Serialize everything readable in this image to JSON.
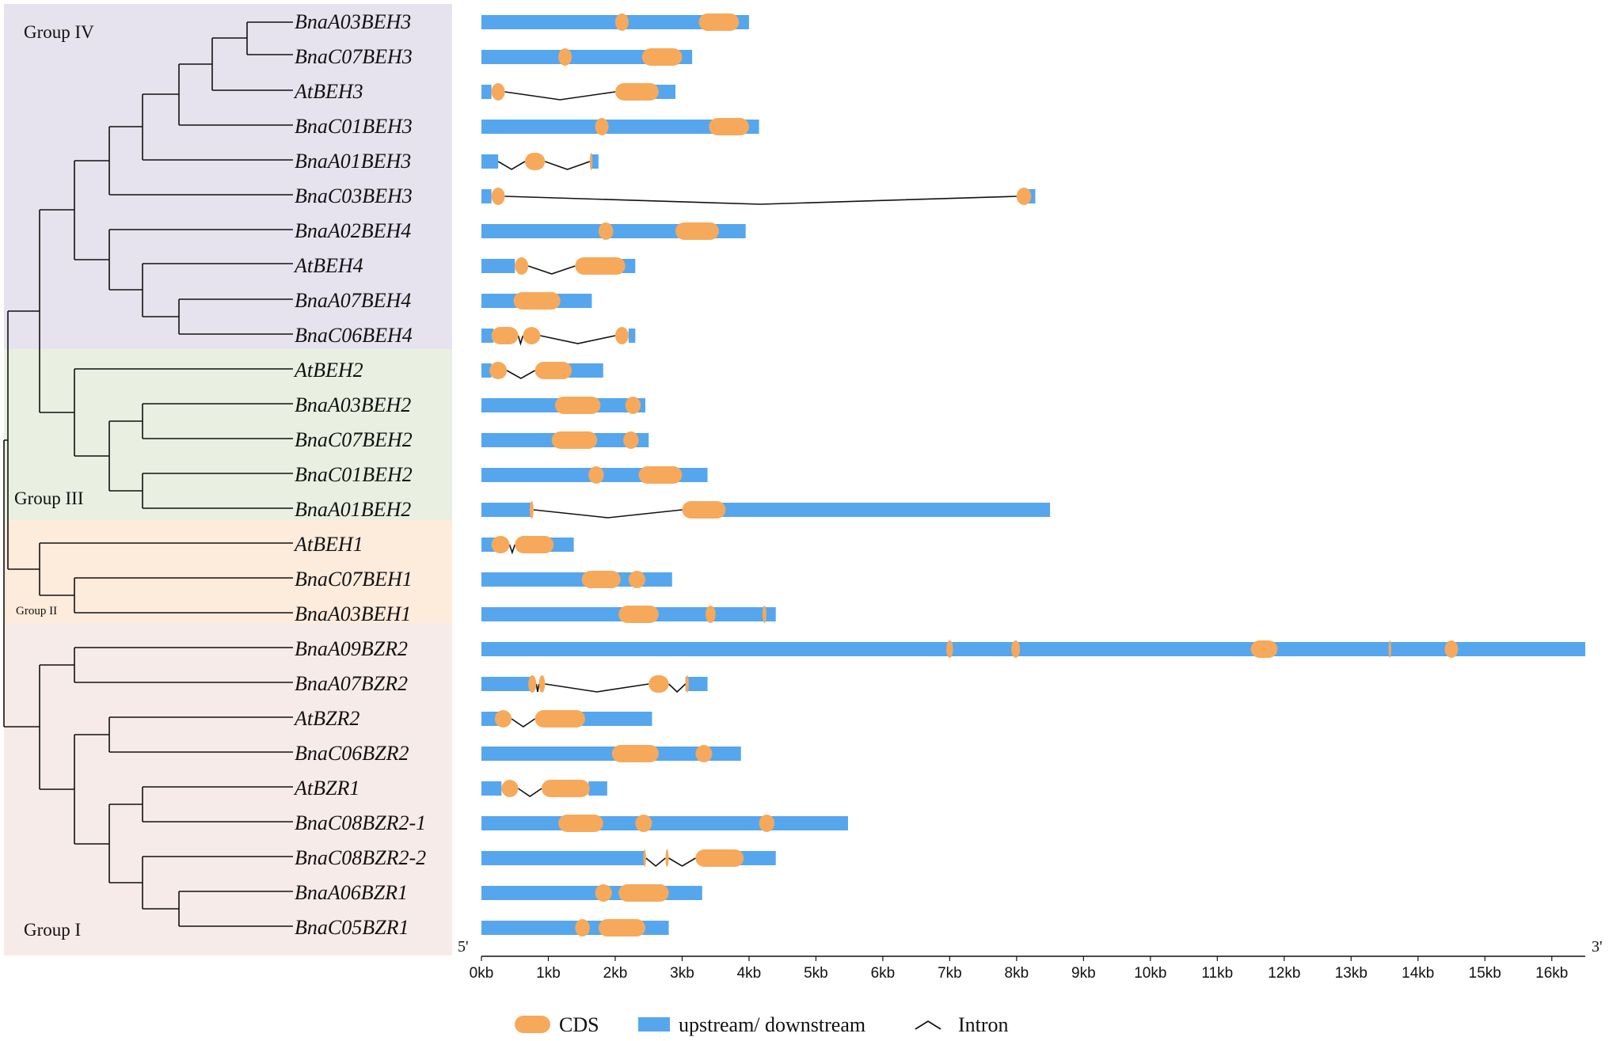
{
  "groups": {
    "group_iv": "Group IV",
    "group_iii": "Group III",
    "group_ii": "Group II",
    "group_i": "Group I"
  },
  "colors": {
    "group_iv": "#e7e3ee",
    "group_iii": "#e9f0e1",
    "group_ii": "#fdebdc",
    "group_i": "#f7ebe9",
    "cds": "#f6a95a",
    "utr": "#56a6ee",
    "intron": "#111111"
  },
  "genes": [
    "BnaA03BEH3",
    "BnaC07BEH3",
    "AtBEH3",
    "BnaC01BEH3",
    "BnaA01BEH3",
    "BnaC03BEH3",
    "BnaA02BEH4",
    "AtBEH4",
    "BnaA07BEH4",
    "BnaC06BEH4",
    "AtBEH2",
    "BnaA03BEH2",
    "BnaC07BEH2",
    "BnaC01BEH2",
    "BnaA01BEH2",
    "AtBEH1",
    "BnaC07BEH1",
    "BnaA03BEH1",
    "BnaA09BZR2",
    "BnaA07BZR2",
    "AtBZR2",
    "BnaC06BZR2",
    "AtBZR1",
    "BnaC08BZR2-1",
    "BnaC08BZR2-2",
    "BnaA06BZR1",
    "BnaC05BZR1"
  ],
  "chart_data": {
    "type": "gene_structure",
    "x_unit": "kb",
    "xlim": [
      0,
      16.5
    ],
    "xticks": [
      "0kb",
      "1kb",
      "2kb",
      "3kb",
      "4kb",
      "5kb",
      "6kb",
      "7kb",
      "8kb",
      "9kb",
      "10kb",
      "11kb",
      "12kb",
      "13kb",
      "14kb",
      "15kb",
      "16kb"
    ],
    "five_prime_label": "5'",
    "three_prime_label": "3'",
    "structures": [
      {
        "gene": "BnaA03BEH3",
        "utr": [
          [
            0,
            4.0
          ]
        ],
        "cds": [
          [
            2.0,
            2.2
          ],
          [
            3.25,
            3.85
          ]
        ]
      },
      {
        "gene": "BnaC07BEH3",
        "utr": [
          [
            0,
            3.15
          ]
        ],
        "cds": [
          [
            1.15,
            1.35
          ],
          [
            2.4,
            3.0
          ]
        ]
      },
      {
        "gene": "AtBEH3",
        "utr": [
          [
            0,
            0.15
          ],
          [
            2.5,
            2.9
          ]
        ],
        "cds": [
          [
            0.15,
            0.35
          ],
          [
            2.0,
            2.65
          ]
        ]
      },
      {
        "gene": "BnaC01BEH3",
        "utr": [
          [
            0,
            4.15
          ]
        ],
        "cds": [
          [
            1.7,
            1.9
          ],
          [
            3.4,
            4.0
          ]
        ]
      },
      {
        "gene": "BnaA01BEH3",
        "utr": [
          [
            0,
            0.25
          ],
          [
            1.65,
            1.75
          ]
        ],
        "cds": [
          [
            0.65,
            0.95
          ],
          [
            1.62,
            1.66
          ]
        ]
      },
      {
        "gene": "BnaC03BEH3",
        "utr": [
          [
            0,
            0.15
          ],
          [
            8.15,
            8.28
          ]
        ],
        "cds": [
          [
            0.15,
            0.35
          ],
          [
            8.0,
            8.22
          ]
        ]
      },
      {
        "gene": "BnaA02BEH4",
        "utr": [
          [
            0,
            3.95
          ]
        ],
        "cds": [
          [
            1.75,
            1.97
          ],
          [
            2.9,
            3.55
          ]
        ]
      },
      {
        "gene": "AtBEH4",
        "utr": [
          [
            0,
            0.5
          ],
          [
            2.1,
            2.3
          ]
        ],
        "cds": [
          [
            0.5,
            0.7
          ],
          [
            1.4,
            2.15
          ]
        ]
      },
      {
        "gene": "BnaA07BEH4",
        "utr": [
          [
            0,
            1.65
          ]
        ],
        "cds": [
          [
            0.48,
            1.18
          ]
        ]
      },
      {
        "gene": "BnaC06BEH4",
        "utr": [
          [
            0,
            0.18
          ],
          [
            2.2,
            2.3
          ]
        ],
        "cds": [
          [
            0.15,
            0.55
          ],
          [
            0.62,
            0.88
          ],
          [
            2.0,
            2.2
          ]
        ]
      },
      {
        "gene": "AtBEH2",
        "utr": [
          [
            0,
            0.15
          ],
          [
            1.3,
            1.82
          ]
        ],
        "cds": [
          [
            0.12,
            0.38
          ],
          [
            0.8,
            1.35
          ]
        ]
      },
      {
        "gene": "BnaA03BEH2",
        "utr": [
          [
            0,
            2.45
          ]
        ],
        "cds": [
          [
            1.1,
            1.78
          ],
          [
            2.15,
            2.38
          ]
        ]
      },
      {
        "gene": "BnaC07BEH2",
        "utr": [
          [
            0,
            2.5
          ]
        ],
        "cds": [
          [
            1.05,
            1.73
          ],
          [
            2.12,
            2.35
          ]
        ]
      },
      {
        "gene": "BnaC01BEH2",
        "utr": [
          [
            0,
            3.38
          ]
        ],
        "cds": [
          [
            1.6,
            1.83
          ],
          [
            2.35,
            3.0
          ]
        ]
      },
      {
        "gene": "BnaA01BEH2",
        "utr": [
          [
            0,
            0.75
          ],
          [
            3.6,
            8.5
          ]
        ],
        "cds": [
          [
            0.72,
            0.78
          ],
          [
            3.0,
            3.65
          ]
        ]
      },
      {
        "gene": "AtBEH1",
        "utr": [
          [
            0,
            0.2
          ],
          [
            1.0,
            1.38
          ]
        ],
        "cds": [
          [
            0.15,
            0.42
          ],
          [
            0.5,
            1.08
          ]
        ]
      },
      {
        "gene": "BnaC07BEH1",
        "utr": [
          [
            0,
            2.85
          ]
        ],
        "cds": [
          [
            1.5,
            2.08
          ],
          [
            2.2,
            2.45
          ]
        ]
      },
      {
        "gene": "BnaA03BEH1",
        "utr": [
          [
            0,
            4.4
          ]
        ],
        "cds": [
          [
            2.05,
            2.65
          ],
          [
            3.35,
            3.5
          ],
          [
            4.2,
            4.26
          ]
        ]
      },
      {
        "gene": "BnaA09BZR2",
        "utr": [
          [
            0,
            16.5
          ]
        ],
        "cds": [
          [
            6.95,
            7.05
          ],
          [
            7.92,
            8.05
          ],
          [
            11.5,
            11.9
          ],
          [
            13.56,
            13.6
          ],
          [
            14.4,
            14.6
          ]
        ]
      },
      {
        "gene": "BnaA07BZR2",
        "utr": [
          [
            0,
            0.75
          ],
          [
            3.05,
            3.38
          ]
        ],
        "cds": [
          [
            0.7,
            0.82
          ],
          [
            0.86,
            0.95
          ],
          [
            2.5,
            2.8
          ],
          [
            3.05,
            3.1
          ]
        ]
      },
      {
        "gene": "AtBZR2",
        "utr": [
          [
            0,
            0.25
          ],
          [
            1.5,
            2.55
          ]
        ],
        "cds": [
          [
            0.2,
            0.45
          ],
          [
            0.8,
            1.55
          ]
        ]
      },
      {
        "gene": "BnaC06BZR2",
        "utr": [
          [
            0,
            3.88
          ]
        ],
        "cds": [
          [
            1.95,
            2.65
          ],
          [
            3.2,
            3.45
          ]
        ]
      },
      {
        "gene": "AtBZR1",
        "utr": [
          [
            0,
            0.3
          ],
          [
            1.6,
            1.88
          ]
        ],
        "cds": [
          [
            0.3,
            0.55
          ],
          [
            0.9,
            1.62
          ]
        ]
      },
      {
        "gene": "BnaC08BZR2-1",
        "utr": [
          [
            0,
            5.48
          ]
        ],
        "cds": [
          [
            1.15,
            1.82
          ],
          [
            2.3,
            2.55
          ],
          [
            4.15,
            4.38
          ]
        ]
      },
      {
        "gene": "BnaC08BZR2-2",
        "utr": [
          [
            0,
            2.45
          ],
          [
            3.8,
            4.4
          ]
        ],
        "cds": [
          [
            2.42,
            2.46
          ],
          [
            2.75,
            2.8
          ],
          [
            3.2,
            3.92
          ]
        ]
      },
      {
        "gene": "BnaA06BZR1",
        "utr": [
          [
            0,
            3.3
          ]
        ],
        "cds": [
          [
            1.7,
            1.95
          ],
          [
            2.05,
            2.8
          ]
        ]
      },
      {
        "gene": "BnaC05BZR1",
        "utr": [
          [
            0,
            2.8
          ]
        ],
        "cds": [
          [
            1.4,
            1.62
          ],
          [
            1.75,
            2.45
          ]
        ]
      }
    ]
  },
  "legend": {
    "cds": "CDS",
    "utr": "upstream/ downstream",
    "intron": "Intron"
  }
}
